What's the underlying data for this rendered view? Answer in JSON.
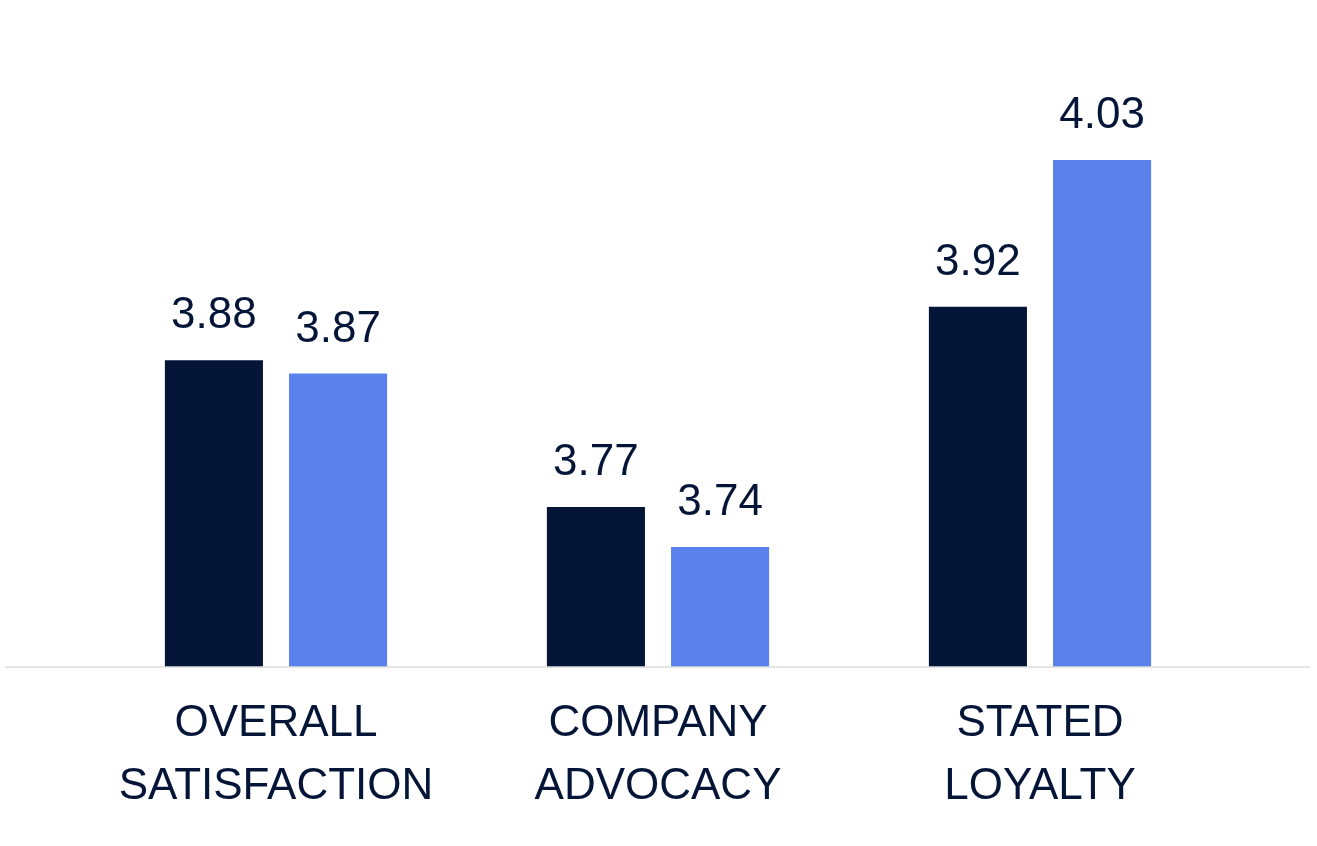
{
  "chart_data": {
    "type": "bar",
    "categories": [
      "OVERALL SATISFACTION",
      "COMPANY ADVOCACY",
      "STATED LOYALTY"
    ],
    "series": [
      {
        "color": "#041538",
        "values": [
          3.88,
          3.77,
          3.92
        ]
      },
      {
        "color": "#5b82ec",
        "values": [
          3.87,
          3.74,
          4.03
        ]
      }
    ],
    "tick_labels": "x",
    "grid": false,
    "legend": false,
    "data_labels": true
  }
}
